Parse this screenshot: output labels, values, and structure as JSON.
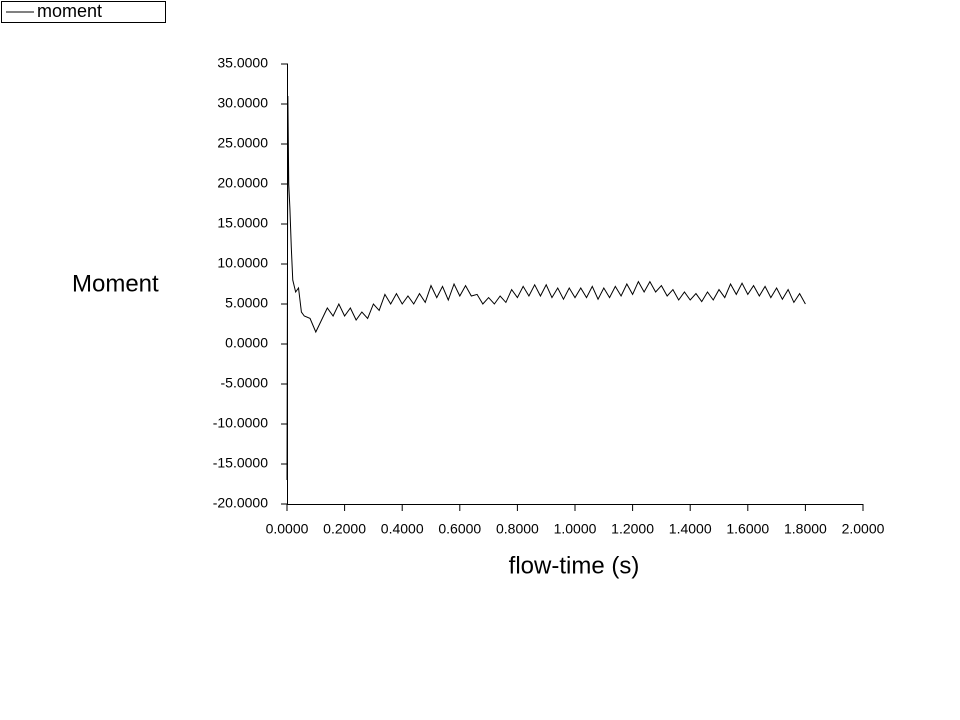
{
  "chart_data": {
    "type": "line",
    "xlabel": "flow-time (s)",
    "ylabel": "Moment",
    "x": [
      0,
      0.003,
      0.006,
      0.01,
      0.015,
      0.02,
      0.03,
      0.04,
      0.05,
      0.06,
      0.08,
      0.1,
      0.12,
      0.14,
      0.16,
      0.18,
      0.2,
      0.22,
      0.24,
      0.26,
      0.28,
      0.3,
      0.32,
      0.34,
      0.36,
      0.38,
      0.4,
      0.42,
      0.44,
      0.46,
      0.48,
      0.5,
      0.52,
      0.54,
      0.56,
      0.58,
      0.6,
      0.62,
      0.64,
      0.66,
      0.68,
      0.7,
      0.72,
      0.74,
      0.76,
      0.78,
      0.8,
      0.82,
      0.84,
      0.86,
      0.88,
      0.9,
      0.92,
      0.94,
      0.96,
      0.98,
      1.0,
      1.02,
      1.04,
      1.06,
      1.08,
      1.1,
      1.12,
      1.14,
      1.16,
      1.18,
      1.2,
      1.22,
      1.24,
      1.26,
      1.28,
      1.3,
      1.32,
      1.34,
      1.36,
      1.38,
      1.4,
      1.42,
      1.44,
      1.46,
      1.48,
      1.5,
      1.52,
      1.54,
      1.56,
      1.58,
      1.6,
      1.62,
      1.64,
      1.66,
      1.68,
      1.7,
      1.72,
      1.74,
      1.76,
      1.78,
      1.8
    ],
    "series": [
      {
        "name": "moment",
        "color": "#000000",
        "values": [
          -17,
          31,
          20,
          17,
          12,
          8,
          6.5,
          7,
          4,
          3.5,
          3.2,
          1.5,
          3,
          4.5,
          3.5,
          5,
          3.5,
          4.5,
          3,
          4,
          3.2,
          5,
          4.2,
          6.2,
          5,
          6.3,
          5,
          6,
          5,
          6.3,
          5.2,
          7.3,
          5.8,
          7.2,
          5.5,
          7.5,
          6,
          7.3,
          6,
          6.2,
          5,
          5.8,
          5,
          6,
          5.2,
          6.8,
          5.8,
          7.2,
          6,
          7.4,
          6,
          7.4,
          5.8,
          7,
          5.6,
          7,
          5.8,
          7,
          5.8,
          7.2,
          5.6,
          7,
          5.8,
          7.2,
          6,
          7.5,
          6.2,
          7.8,
          6.5,
          7.8,
          6.5,
          7.3,
          6,
          6.8,
          5.5,
          6.5,
          5.5,
          6.3,
          5.3,
          6.5,
          5.5,
          6.8,
          5.8,
          7.5,
          6.2,
          7.6,
          6.2,
          7.3,
          6,
          7.2,
          5.8,
          7,
          5.6,
          6.8,
          5.2,
          6.3,
          5
        ]
      }
    ],
    "xlim": [
      0,
      2
    ],
    "xticks": [
      {
        "value": 0,
        "label": "0.0000"
      },
      {
        "value": 0.2,
        "label": "0.2000"
      },
      {
        "value": 0.4,
        "label": "0.4000"
      },
      {
        "value": 0.6,
        "label": "0.6000"
      },
      {
        "value": 0.8,
        "label": "0.8000"
      },
      {
        "value": 1,
        "label": "1.0000"
      },
      {
        "value": 1.2,
        "label": "1.2000"
      },
      {
        "value": 1.4,
        "label": "1.4000"
      },
      {
        "value": 1.6,
        "label": "1.6000"
      },
      {
        "value": 1.8,
        "label": "1.8000"
      },
      {
        "value": 2,
        "label": "2.0000"
      }
    ],
    "ylim": [
      -20,
      35
    ],
    "yticks": [
      {
        "value": 35,
        "label": "35.0000"
      },
      {
        "value": 30,
        "label": "30.0000"
      },
      {
        "value": 25,
        "label": "25.0000"
      },
      {
        "value": 20,
        "label": "20.0000"
      },
      {
        "value": 15,
        "label": "15.0000"
      },
      {
        "value": 10,
        "label": "10.0000"
      },
      {
        "value": 5,
        "label": "5.0000"
      },
      {
        "value": 0,
        "label": "0.0000"
      },
      {
        "value": -5,
        "label": "-5.0000"
      },
      {
        "value": -10,
        "label": "-10.0000"
      },
      {
        "value": -15,
        "label": "-15.0000"
      },
      {
        "value": -20,
        "label": "-20.0000"
      }
    ],
    "grid": false
  }
}
